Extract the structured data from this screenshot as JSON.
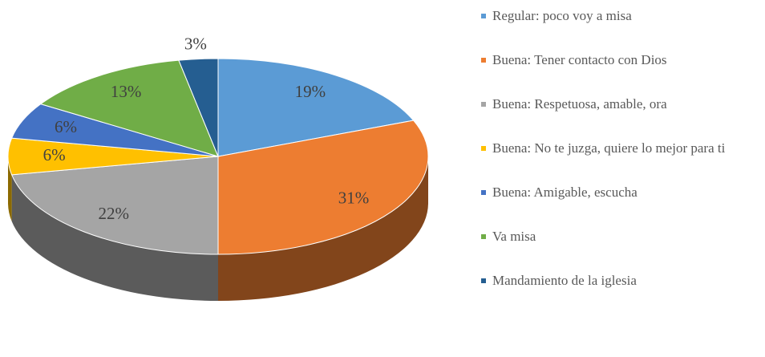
{
  "chart_data": {
    "type": "pie",
    "legend": "right",
    "categories": [
      "Regular: poco voy a misa",
      "Buena: Tener contacto con Dios",
      "Buena: Respetuosa, amable, ora",
      "Buena: No te juzga, quiere lo mejor para ti",
      "Buena: Amigable, escucha",
      "Va misa",
      "Mandamiento de la iglesia"
    ],
    "values": [
      19,
      31,
      22,
      6,
      6,
      13,
      3
    ],
    "value_labels": [
      "19%",
      "31%",
      "22%",
      "6%",
      "6%",
      "13%",
      "3%"
    ],
    "colors": [
      "#5b9bd5",
      "#ed7d31",
      "#a5a5a5",
      "#ffc000",
      "#4472c4",
      "#70ad47",
      "#255e91"
    ]
  }
}
